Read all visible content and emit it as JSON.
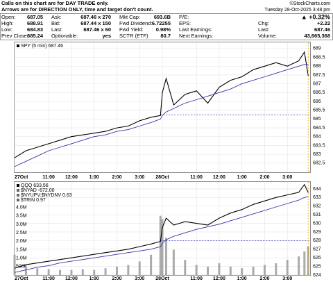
{
  "notice": [
    "Calls on this chart are for DAY TRADE only.",
    "Arrows are for DIRECTION ONLY, time and target don't count."
  ],
  "brand": "©StockCharts.com",
  "timestamp": "Tuesday  28-Oct-2025  3:48 pm",
  "quote": {
    "open": [
      "Open:",
      "687.05"
    ],
    "high": [
      "High:",
      "688.91"
    ],
    "low": [
      "Low:",
      "684.83"
    ],
    "prev_close": [
      "Prev Close:",
      "685.24"
    ],
    "ask": [
      "Ask:",
      "687.46 x 270"
    ],
    "bid": [
      "Bid:",
      "687.44 x 150"
    ],
    "last_size": [
      "Last:",
      "687.46 x 60"
    ],
    "optionable": [
      "Optionable:",
      "yes"
    ],
    "mkt_cap": [
      "Mkt Cap:",
      "693.6B"
    ],
    "fwd_dividend": [
      "Fwd Dividend:",
      "6.72255"
    ],
    "fwd_yield": [
      "Fwd Yield:",
      "0.98%"
    ],
    "sctr": [
      "SCTR (ETF)",
      "80.7"
    ],
    "pe": "P/E:",
    "eps": "EPS:",
    "last_earnings": "Last Earnings:",
    "next_earnings": "Next Earnings:",
    "change_pct": "▲ +0.32%",
    "chg": [
      "Chg:",
      "+2.22"
    ],
    "last": [
      "Last:",
      "687.46"
    ],
    "volume": [
      "Volume:",
      "43,665,368"
    ]
  },
  "chart_data": [
    {
      "type": "line",
      "legend": "SPY (5 min) 687.46",
      "x": [
        0,
        6,
        12,
        18,
        24,
        30,
        36,
        42,
        48,
        54,
        60,
        66,
        72,
        77,
        78,
        80,
        84,
        90,
        96,
        102,
        108,
        114,
        120,
        126,
        132,
        138,
        144,
        150,
        153,
        155
      ],
      "xlim": [
        0,
        156
      ],
      "xticks": [
        {
          "value": 0,
          "label": "27Oct"
        },
        {
          "value": 18,
          "label": "11:00"
        },
        {
          "value": 30,
          "label": "12:00"
        },
        {
          "value": 42,
          "label": "1:00"
        },
        {
          "value": 54,
          "label": "2:00"
        },
        {
          "value": 66,
          "label": "3:00"
        },
        {
          "value": 78,
          "label": "28Oct"
        },
        {
          "value": 96,
          "label": "11:00"
        },
        {
          "value": 108,
          "label": "12:00"
        },
        {
          "value": 120,
          "label": "1:00"
        },
        {
          "value": 132,
          "label": "2:00"
        },
        {
          "value": 144,
          "label": "3:00"
        }
      ],
      "series": [
        {
          "name": "SPY",
          "color": "#000000",
          "values": [
            682.8,
            683.2,
            683.4,
            683.6,
            683.8,
            684.0,
            684.1,
            684.2,
            684.3,
            684.5,
            684.6,
            684.9,
            685.1,
            685.2,
            686.5,
            687.3,
            685.8,
            686.4,
            686.6,
            685.9,
            686.8,
            687.2,
            687.4,
            687.8,
            688.0,
            688.2,
            688.0,
            688.3,
            688.8,
            687.46
          ]
        },
        {
          "color": "#3333aa",
          "values": [
            682.3,
            682.6,
            682.9,
            683.2,
            683.4,
            683.6,
            683.8,
            684.0,
            684.1,
            684.3,
            684.4,
            684.6,
            684.8,
            685.0,
            685.2,
            685.4,
            685.6,
            685.9,
            686.1,
            686.3,
            686.5,
            686.7,
            687.0,
            687.2,
            687.4,
            687.6,
            687.8,
            688.0,
            688.1,
            688.1
          ]
        }
      ],
      "reference_line": 685.24,
      "ylim": [
        681.98,
        689.35
      ],
      "yticks": [
        682.5,
        683.0,
        683.5,
        684.0,
        684.5,
        685.0,
        685.5,
        686.0,
        686.5,
        687.0,
        687.5,
        688.0,
        688.5,
        689.0
      ],
      "grid": true
    },
    {
      "type": "line",
      "legend": [
        "QQQ 633.56",
        "$NYAD -672.00",
        "$NYUPV:$NYDNV 0.63",
        "$TRIN 0.97"
      ],
      "x": [
        0,
        6,
        12,
        18,
        24,
        30,
        36,
        42,
        48,
        54,
        60,
        66,
        72,
        77,
        78,
        80,
        84,
        90,
        96,
        102,
        108,
        114,
        120,
        126,
        132,
        138,
        144,
        150,
        153,
        155
      ],
      "xlim": [
        0,
        156
      ],
      "xticks": [
        {
          "value": 0,
          "label": "27Oct"
        },
        {
          "value": 18,
          "label": "11:00"
        },
        {
          "value": 30,
          "label": "12:00"
        },
        {
          "value": 42,
          "label": "1:00"
        },
        {
          "value": 54,
          "label": "2:00"
        },
        {
          "value": 66,
          "label": "3:00"
        },
        {
          "value": 78,
          "label": "28Oct"
        },
        {
          "value": 96,
          "label": "11:00"
        },
        {
          "value": 108,
          "label": "12:00"
        },
        {
          "value": 120,
          "label": "1:00"
        },
        {
          "value": 132,
          "label": "2:00"
        },
        {
          "value": 144,
          "label": "3:00"
        }
      ],
      "series": [
        {
          "name": "QQQ",
          "color": "#000000",
          "values": [
            624.8,
            625.2,
            625.4,
            625.6,
            625.8,
            626.0,
            626.2,
            626.4,
            626.6,
            626.8,
            627.0,
            627.3,
            627.6,
            627.9,
            629.5,
            630.6,
            629.8,
            630.2,
            630.0,
            629.8,
            630.6,
            631.2,
            631.6,
            632.2,
            632.6,
            633.0,
            633.3,
            633.6,
            634.5,
            633.56
          ]
        },
        {
          "color": "#3333aa",
          "values": [
            624.3,
            624.6,
            624.9,
            625.1,
            625.4,
            625.6,
            625.8,
            626.0,
            626.2,
            626.4,
            626.6,
            626.8,
            627.0,
            627.3,
            627.7,
            628.1,
            628.5,
            628.9,
            629.3,
            629.6,
            629.9,
            630.3,
            630.7,
            631.1,
            631.5,
            631.9,
            632.3,
            632.7,
            633.0,
            633.1
          ]
        }
      ],
      "reference_line": 628,
      "ylim": [
        624,
        634.8
      ],
      "yticks": [
        624,
        625,
        626,
        627,
        628,
        629,
        630,
        631,
        632,
        633,
        634
      ],
      "volume": {
        "color": "#aaaaaa",
        "values": [
          1200000,
          500000,
          400000,
          350000,
          300000,
          300000,
          350000,
          300000,
          400000,
          500000,
          600000,
          800000,
          1200000,
          3500000,
          3300000,
          2200000,
          1500000,
          900000,
          600000,
          500000,
          700000,
          500000,
          400000,
          500000,
          600000,
          700000,
          900000,
          1100000,
          1400000,
          1700000
        ]
      },
      "y2lim": [
        0,
        5500000
      ],
      "y2ticks": [
        {
          "value": 500000,
          "label": "500K"
        },
        {
          "value": 1000000,
          "label": "1.0M"
        },
        {
          "value": 1500000,
          "label": "1.5M"
        },
        {
          "value": 2000000,
          "label": "2.0M"
        },
        {
          "value": 2500000,
          "label": "2.5M"
        },
        {
          "value": 3000000,
          "label": "3.0M"
        },
        {
          "value": 3500000,
          "label": "3.5M"
        },
        {
          "value": 4000000,
          "label": "4.0M"
        }
      ],
      "grid": true
    }
  ]
}
